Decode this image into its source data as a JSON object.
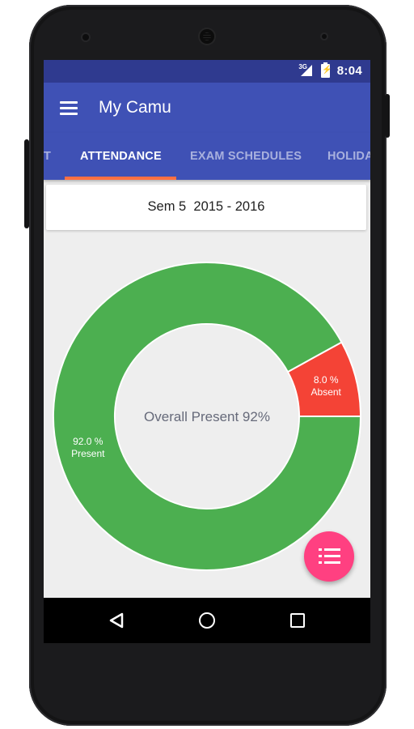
{
  "status_bar": {
    "network": "3G",
    "time": "8:04"
  },
  "app_bar": {
    "menu_icon": "hamburger-menu-icon",
    "title": "My Camu"
  },
  "tabs": [
    {
      "label": "T",
      "active": false
    },
    {
      "label": "ATTENDANCE",
      "active": true
    },
    {
      "label": "EXAM SCHEDULES",
      "active": false
    },
    {
      "label": "HOLIDA",
      "active": false
    }
  ],
  "semester": {
    "label": "Sem 5  2015 - 2016"
  },
  "chart_data": {
    "type": "pie",
    "title": "",
    "center_label": "Overall Present 92%",
    "slices": [
      {
        "label": "Present",
        "value": 92.0,
        "value_label": "92.0 %",
        "color": "#4caf50"
      },
      {
        "label": "Absent",
        "value": 8.0,
        "value_label": "8.0 %",
        "color": "#f44336"
      }
    ]
  },
  "fab": {
    "icon": "list-icon",
    "color": "#ff4081"
  },
  "nav_bar": {
    "back_icon": "back-triangle-icon",
    "home_icon": "home-circle-icon",
    "recent_icon": "recent-square-icon"
  },
  "colors": {
    "primary": "#3f51b5",
    "primary_dark": "#2f3a8f",
    "accent": "#ff4081",
    "indicator": "#ff7043"
  }
}
